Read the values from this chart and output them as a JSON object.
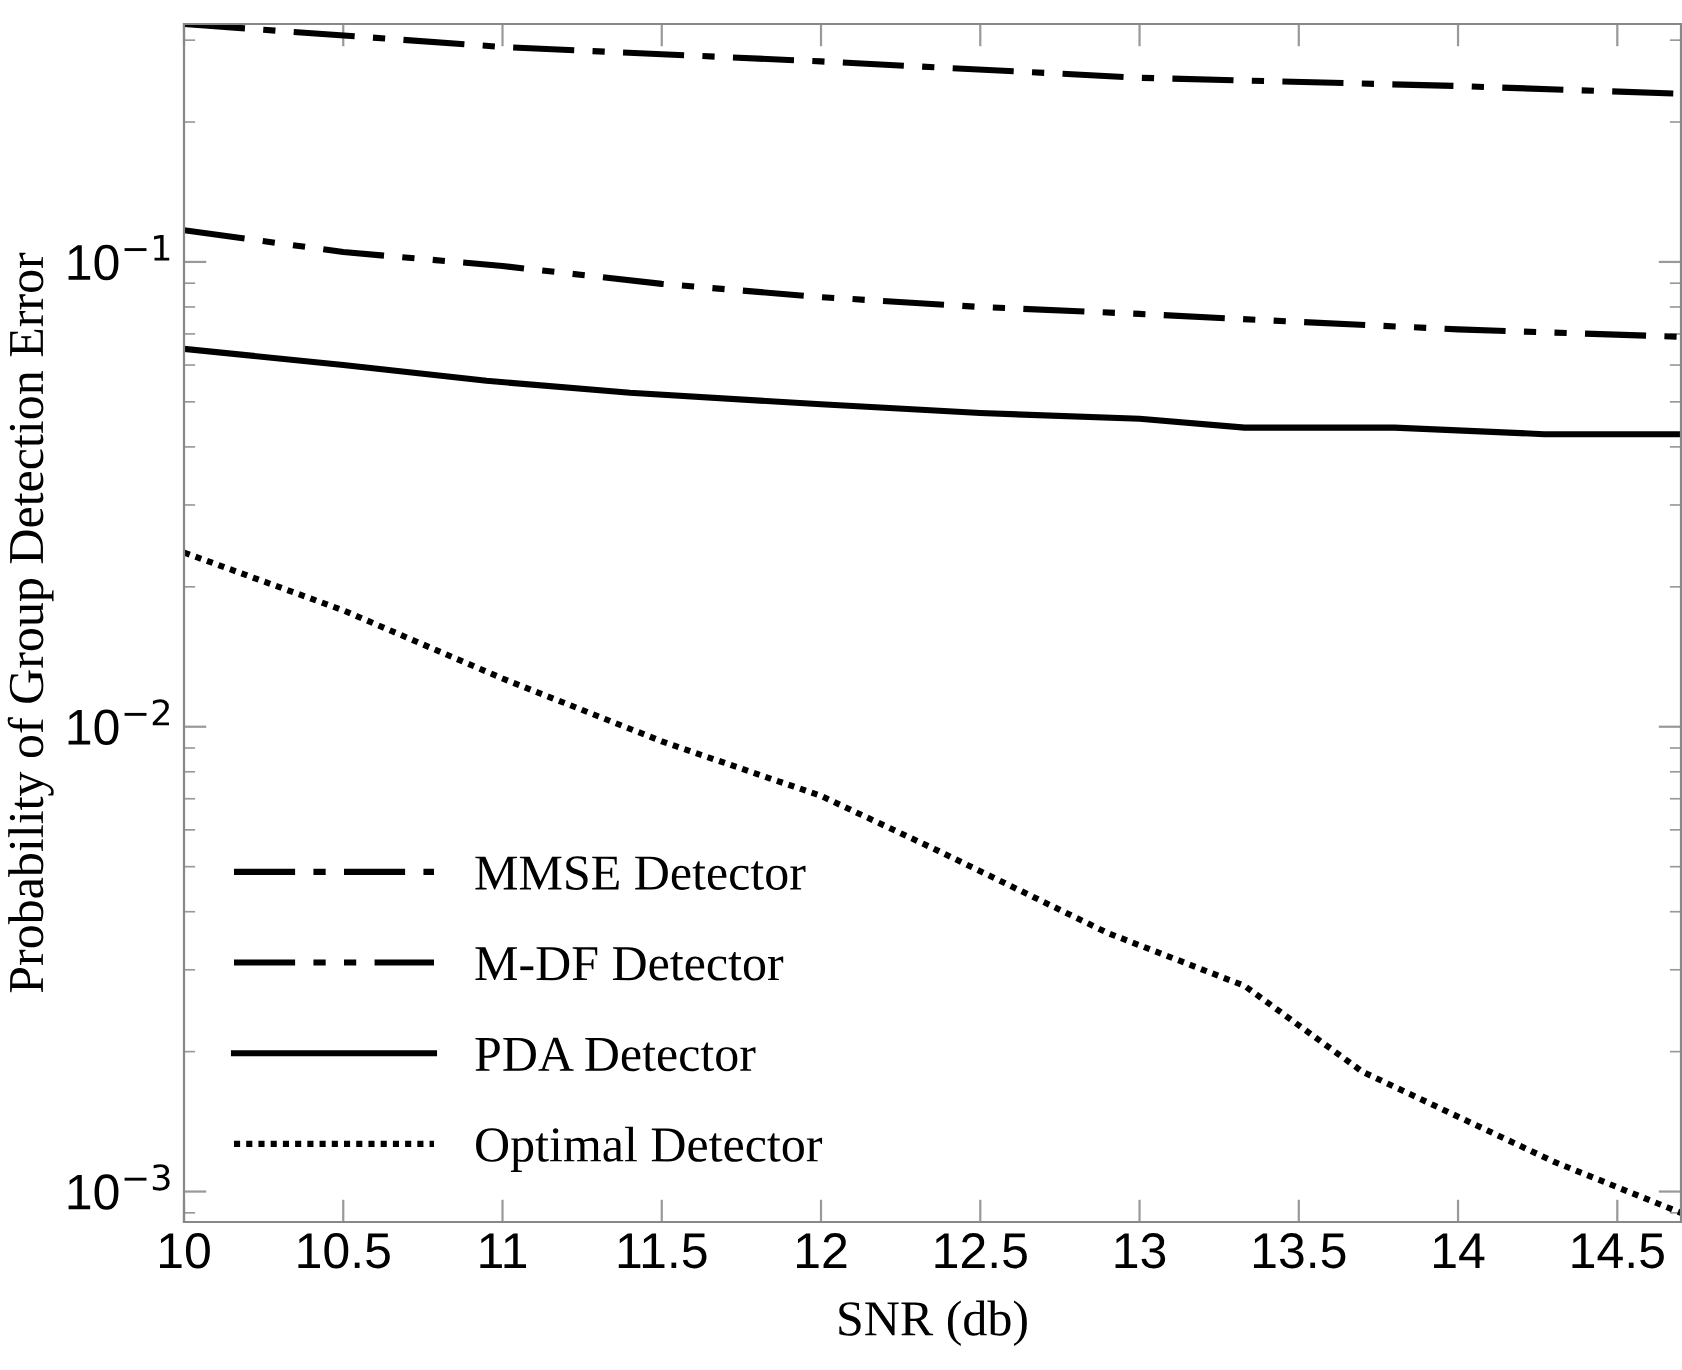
{
  "chart_data": {
    "type": "line",
    "xlabel": "SNR (db)",
    "ylabel": "Probability of Group Detection Error",
    "log": "y",
    "grid": false,
    "legend": "bottom left",
    "marker": "none",
    "xlim": [
      10,
      14.7
    ],
    "xticks": [
      10,
      10.5,
      11,
      11.5,
      12,
      12.5,
      13,
      13.5,
      14,
      14.5
    ],
    "ylim": [
      0.00086,
      0.325
    ],
    "yticks": [
      {
        "value": 0.001,
        "label": "10$^{−3}$"
      },
      {
        "value": 0.01,
        "label": "10$^{−2}$"
      },
      {
        "value": 0.1,
        "label": "10$^{−1}$"
      }
    ],
    "series": [
      {
        "name": "MMSE Detector",
        "color": "#000000",
        "line_style": "dashdot",
        "x": [
          10,
          11,
          12,
          13,
          14,
          14.7
        ],
        "values": [
          0.325,
          0.29,
          0.27,
          0.249,
          0.239,
          0.23
        ]
      },
      {
        "name": "M-DF Detector",
        "color": "#000000",
        "line_style": "dashdotdot",
        "x": [
          10,
          10.5,
          11,
          11.5,
          12,
          12.5,
          13,
          13.5,
          14,
          14.7
        ],
        "values": [
          0.117,
          0.105,
          0.098,
          0.0897,
          0.084,
          0.08,
          0.0773,
          0.0743,
          0.0716,
          0.069
        ]
      },
      {
        "name": "PDA Detector",
        "color": "#000000",
        "line_style": "solid",
        "x": [
          10,
          10.5,
          10.95,
          11.4,
          12,
          12.5,
          13,
          13.33,
          13.8,
          14.27,
          14.7
        ],
        "values": [
          0.065,
          0.06,
          0.0555,
          0.0523,
          0.0494,
          0.0473,
          0.046,
          0.044,
          0.044,
          0.0426,
          0.0426
        ]
      },
      {
        "name": "Optimal Detector",
        "color": "#000000",
        "line_style": "dotted",
        "x": [
          10,
          10.5,
          11,
          11.5,
          12,
          12.37,
          12.9,
          13.33,
          13.7,
          14.3,
          14.7
        ],
        "values": [
          0.0237,
          0.0178,
          0.0127,
          0.0093,
          0.0071,
          0.0054,
          0.0036,
          0.00277,
          0.00181,
          0.00116,
          0.0009
        ]
      }
    ]
  }
}
